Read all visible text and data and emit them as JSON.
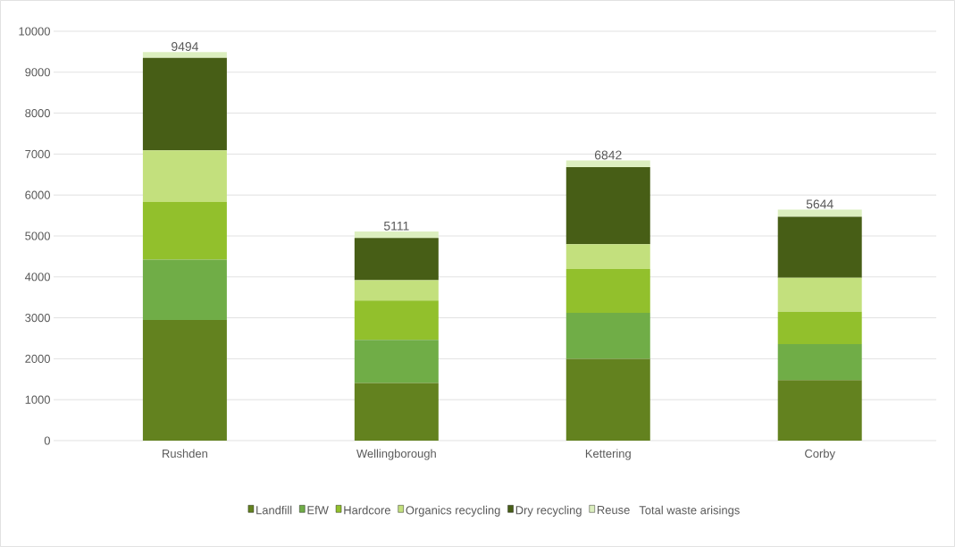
{
  "chart_data": {
    "type": "bar",
    "stacked": true,
    "categories": [
      "Rushden",
      "Wellingborough",
      "Kettering",
      "Corby"
    ],
    "series": [
      {
        "name": "Landfill",
        "color": "#63821f",
        "values": [
          2950,
          1410,
          2000,
          1480
        ]
      },
      {
        "name": "EfW",
        "color": "#70ad47",
        "values": [
          1470,
          1050,
          1120,
          880
        ]
      },
      {
        "name": "Hardcore",
        "color": "#92c02c",
        "values": [
          1410,
          960,
          1070,
          790
        ]
      },
      {
        "name": "Organics recycling",
        "color": "#c3e07d",
        "values": [
          1260,
          500,
          610,
          830
        ]
      },
      {
        "name": "Dry recycling",
        "color": "#475e16",
        "values": [
          2260,
          1030,
          1880,
          1490
        ]
      },
      {
        "name": "Reuse",
        "color": "#dcefbf",
        "values": [
          144,
          161,
          162,
          174
        ]
      }
    ],
    "totals": [
      "9494",
      "5111",
      "6842",
      "5644"
    ],
    "annotations": [
      "Total waste arisings"
    ],
    "ylim": [
      0,
      10000
    ],
    "yticks": [
      0,
      1000,
      2000,
      3000,
      4000,
      5000,
      6000,
      7000,
      8000,
      9000,
      10000
    ],
    "grid": "y",
    "legend": "bottom"
  }
}
